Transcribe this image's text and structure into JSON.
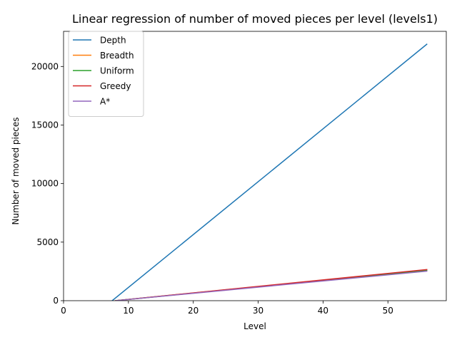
{
  "chart_data": {
    "type": "line",
    "title": "Linear regression of number of moved pieces per level (levels1)",
    "xlabel": "Level",
    "ylabel": "Number of moved pieces",
    "xlim": [
      0,
      59
    ],
    "ylim": [
      0,
      23000
    ],
    "xticks": [
      "0",
      "10",
      "20",
      "30",
      "40",
      "50"
    ],
    "xtick_values": [
      0,
      10,
      20,
      30,
      40,
      50
    ],
    "yticks": [
      "0",
      "5000",
      "10000",
      "15000",
      "20000"
    ],
    "ytick_values": [
      0,
      5000,
      10000,
      15000,
      20000
    ],
    "grid": false,
    "legend_position": "top-left",
    "series": [
      {
        "name": "Depth",
        "color": "#1f77b4",
        "x": [
          7.5,
          56
        ],
        "y": [
          0,
          21900
        ]
      },
      {
        "name": "Breadth",
        "color": "#ff7f0e",
        "x": [
          8,
          56
        ],
        "y": [
          0,
          2620
        ]
      },
      {
        "name": "Uniform",
        "color": "#2ca02c",
        "x": [
          8,
          56
        ],
        "y": [
          0,
          2600
        ]
      },
      {
        "name": "Greedy",
        "color": "#d62728",
        "x": [
          8,
          56
        ],
        "y": [
          0,
          2660
        ]
      },
      {
        "name": "A*",
        "color": "#9467bd",
        "x": [
          8,
          56
        ],
        "y": [
          0,
          2520
        ]
      }
    ]
  }
}
